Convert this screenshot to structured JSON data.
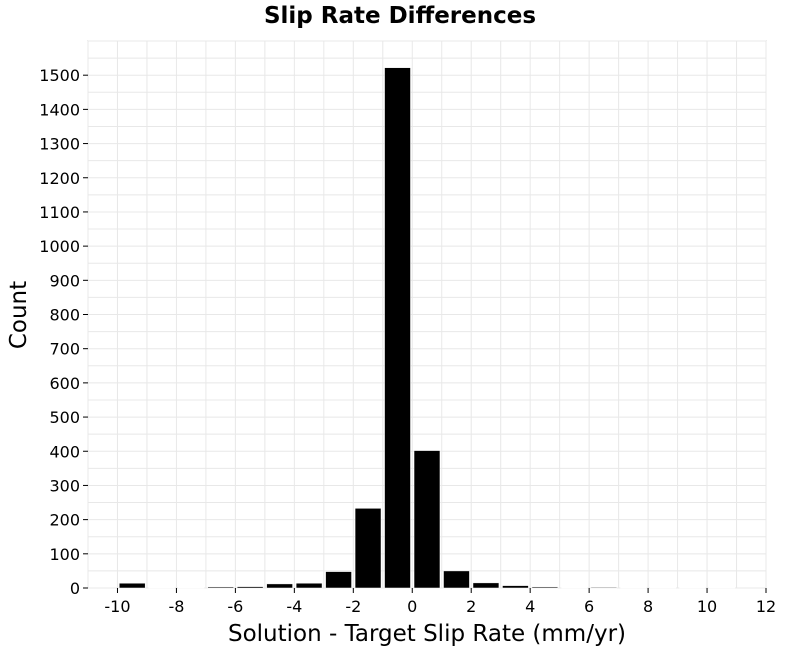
{
  "chart_data": {
    "type": "bar",
    "title": "Slip Rate Differences",
    "xlabel": "Solution - Target Slip Rate (mm/yr)",
    "ylabel": "Count",
    "xlim": [
      -11,
      12
    ],
    "ylim": [
      0,
      1600
    ],
    "xticks": [
      -10,
      -8,
      -6,
      -4,
      -2,
      0,
      2,
      4,
      6,
      8,
      10,
      12
    ],
    "yticks": [
      0,
      100,
      200,
      300,
      400,
      500,
      600,
      700,
      800,
      900,
      1000,
      1100,
      1200,
      1300,
      1400,
      1500
    ],
    "bin_width": 1,
    "grid": true,
    "bar_color": "#000000",
    "bins": [
      {
        "x": -9.5,
        "count": 14
      },
      {
        "x": -8.5,
        "count": 1
      },
      {
        "x": -7.5,
        "count": 1
      },
      {
        "x": -6.5,
        "count": 3
      },
      {
        "x": -5.5,
        "count": 4
      },
      {
        "x": -4.5,
        "count": 12
      },
      {
        "x": -3.5,
        "count": 14
      },
      {
        "x": -2.5,
        "count": 48
      },
      {
        "x": -1.5,
        "count": 233
      },
      {
        "x": -0.5,
        "count": 1522
      },
      {
        "x": 0.5,
        "count": 402
      },
      {
        "x": 1.5,
        "count": 50
      },
      {
        "x": 2.5,
        "count": 15
      },
      {
        "x": 3.5,
        "count": 7
      },
      {
        "x": 4.5,
        "count": 3
      },
      {
        "x": 5.5,
        "count": 1
      },
      {
        "x": 6.5,
        "count": 2
      },
      {
        "x": 7.5,
        "count": 1
      },
      {
        "x": 8.5,
        "count": 1
      },
      {
        "x": 9.5,
        "count": 1
      },
      {
        "x": 10.5,
        "count": 1
      }
    ]
  }
}
